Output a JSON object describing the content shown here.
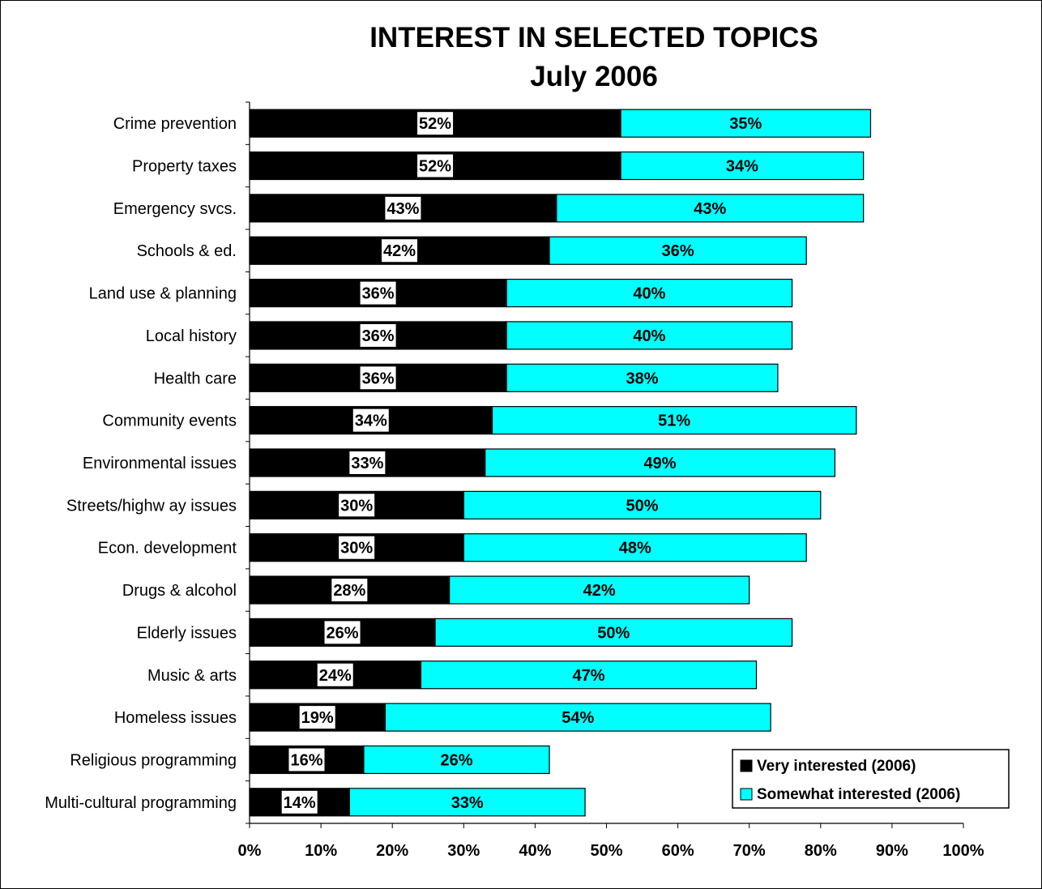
{
  "chart_data": {
    "type": "bar",
    "orientation": "horizontal",
    "stacked": true,
    "title": "INTEREST IN SELECTED TOPICS",
    "subtitle": "July 2006",
    "categories": [
      "Crime prevention",
      "Property taxes",
      "Emergency svcs.",
      "Schools & ed.",
      "Land use & planning",
      "Local history",
      "Health care",
      "Community events",
      "Environmental issues",
      "Streets/highw ay issues",
      "Econ. development",
      "Drugs & alcohol",
      "Elderly issues",
      "Music & arts",
      "Homeless issues",
      "Religious programming",
      "Multi-cultural programming"
    ],
    "series": [
      {
        "name": "Very interested (2006)",
        "color": "#000000",
        "values": [
          52,
          52,
          43,
          42,
          36,
          36,
          36,
          34,
          33,
          30,
          30,
          28,
          26,
          24,
          19,
          16,
          14
        ]
      },
      {
        "name": "Somewhat interested (2006)",
        "color": "#00FFFF",
        "values": [
          35,
          34,
          43,
          36,
          40,
          40,
          38,
          51,
          49,
          50,
          48,
          42,
          50,
          47,
          54,
          26,
          33
        ]
      }
    ],
    "xlim": [
      0,
      100
    ],
    "xticks": [
      "0%",
      "10%",
      "20%",
      "30%",
      "40%",
      "50%",
      "60%",
      "70%",
      "80%",
      "90%",
      "100%"
    ],
    "value_suffix": "%",
    "grid": false,
    "legend": "bottom-right"
  }
}
